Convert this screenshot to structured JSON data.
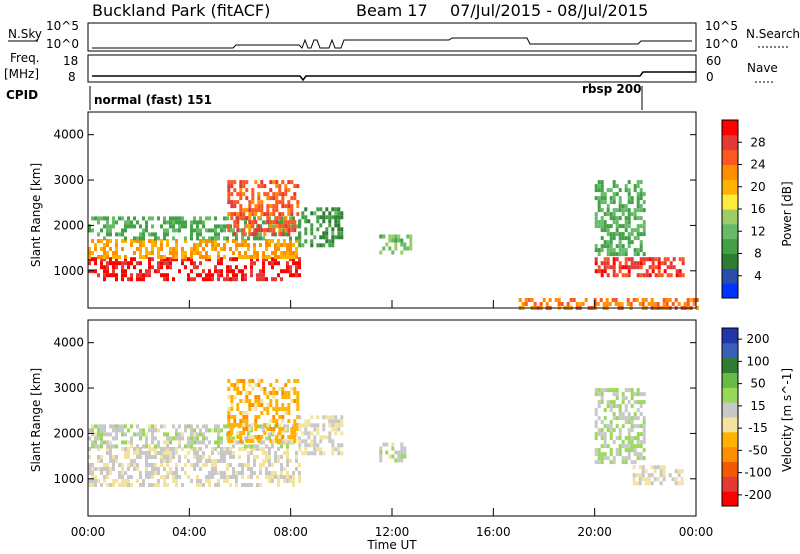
{
  "header": {
    "station": "Buckland Park (fitACF)",
    "beam": "Beam 17",
    "dates": "07/Jul/2015 - 08/Jul/2015"
  },
  "status_panels": {
    "nsky_label": "N.Sky",
    "nsky_ticks": [
      "10^5",
      "10^0"
    ],
    "nsearch_label": "N.Search",
    "nsearch_ticks": [
      "10^5",
      "10^0"
    ],
    "freq_label": "Freq.",
    "freq_unit": "[MHz]",
    "freq_ticks": [
      "18",
      "8"
    ],
    "nave_label": "Nave",
    "nave_ticks": [
      "60",
      "0"
    ],
    "cpid_label": "CPID",
    "cpid_modes": [
      "normal (fast) 151",
      "rbsp 200"
    ]
  },
  "colors": {
    "power_scale": [
      "#0033ff",
      "#2a4ea8",
      "#2e7d32",
      "#43a047",
      "#66bb6a",
      "#9ccc65",
      "#ffeb3b",
      "#ffb300",
      "#ff8f00",
      "#ff5722",
      "#e53935",
      "#ff0000"
    ],
    "velocity_scale": [
      "#2336a8",
      "#3a5fb8",
      "#2e7d32",
      "#66bb44",
      "#9ad85a",
      "#c8c8c8",
      "#f2e3a0",
      "#ffb300",
      "#ff8f00",
      "#f05a00",
      "#e53935",
      "#ff0000"
    ]
  },
  "chart_data": [
    {
      "type": "heatmap",
      "name": "power",
      "xlabel": "Time UT",
      "ylabel": "Slant Range [km]",
      "colorbar_label": "Power [dB]",
      "colorbar_ticks": [
        "4",
        "8",
        "12",
        "16",
        "20",
        "24",
        "28"
      ],
      "colorbar_range": [
        0,
        30
      ],
      "x_ticks": [
        "00:00",
        "04:00",
        "08:00",
        "12:00",
        "16:00",
        "20:00",
        "00:00"
      ],
      "xlim_hours": [
        0,
        24
      ],
      "y_ticks": [
        "1000",
        "2000",
        "3000",
        "4000"
      ],
      "ylim_km": [
        180,
        4500
      ],
      "regions": [
        {
          "t0": 0.0,
          "t1": 8.3,
          "r0": 850,
          "r1": 1300,
          "value": 28
        },
        {
          "t0": 0.0,
          "t1": 8.3,
          "r0": 1300,
          "r1": 1700,
          "value": 20
        },
        {
          "t0": 0.0,
          "t1": 8.3,
          "r0": 1700,
          "r1": 2200,
          "value": 10
        },
        {
          "t0": 5.5,
          "t1": 8.3,
          "r0": 1800,
          "r1": 3000,
          "value": 24
        },
        {
          "t0": 8.3,
          "t1": 10.0,
          "r0": 1600,
          "r1": 2400,
          "value": 8
        },
        {
          "t0": 11.5,
          "t1": 12.8,
          "r0": 1400,
          "r1": 1800,
          "value": 12
        },
        {
          "t0": 20.0,
          "t1": 23.5,
          "r0": 900,
          "r1": 1300,
          "value": 26
        },
        {
          "t0": 20.0,
          "t1": 22.0,
          "r0": 1400,
          "r1": 3000,
          "value": 10
        },
        {
          "t0": 17.0,
          "t1": 24.0,
          "r0": 180,
          "r1": 400,
          "value": 22
        }
      ]
    },
    {
      "type": "heatmap",
      "name": "velocity",
      "xlabel": "Time UT",
      "ylabel": "Slant Range [km]",
      "colorbar_label": "Velocity [m s^-1]",
      "colorbar_ticks": [
        "200",
        "100",
        "50",
        "15",
        "-15",
        "-50",
        "-100",
        "-200"
      ],
      "colorbar_range": [
        -250,
        250
      ],
      "x_ticks": [
        "00:00",
        "04:00",
        "08:00",
        "12:00",
        "16:00",
        "20:00",
        "00:00"
      ],
      "xlim_hours": [
        0,
        24
      ],
      "y_ticks": [
        "1000",
        "2000",
        "3000",
        "4000"
      ],
      "ylim_km": [
        180,
        4500
      ],
      "regions": [
        {
          "t0": 0.0,
          "t1": 8.3,
          "r0": 900,
          "r1": 1700,
          "value": 0
        },
        {
          "t0": 0.0,
          "t1": 8.3,
          "r0": 1700,
          "r1": 2200,
          "value": 30
        },
        {
          "t0": 5.5,
          "t1": 8.3,
          "r0": 1800,
          "r1": 3200,
          "value": -60
        },
        {
          "t0": 8.3,
          "t1": 10.0,
          "r0": 1600,
          "r1": 2400,
          "value": 0
        },
        {
          "t0": 11.5,
          "t1": 12.5,
          "r0": 1400,
          "r1": 1800,
          "value": 30
        },
        {
          "t0": 20.0,
          "t1": 22.0,
          "r0": 1400,
          "r1": 3000,
          "value": 40
        },
        {
          "t0": 21.5,
          "t1": 23.5,
          "r0": 900,
          "r1": 1300,
          "value": 0
        }
      ]
    }
  ]
}
